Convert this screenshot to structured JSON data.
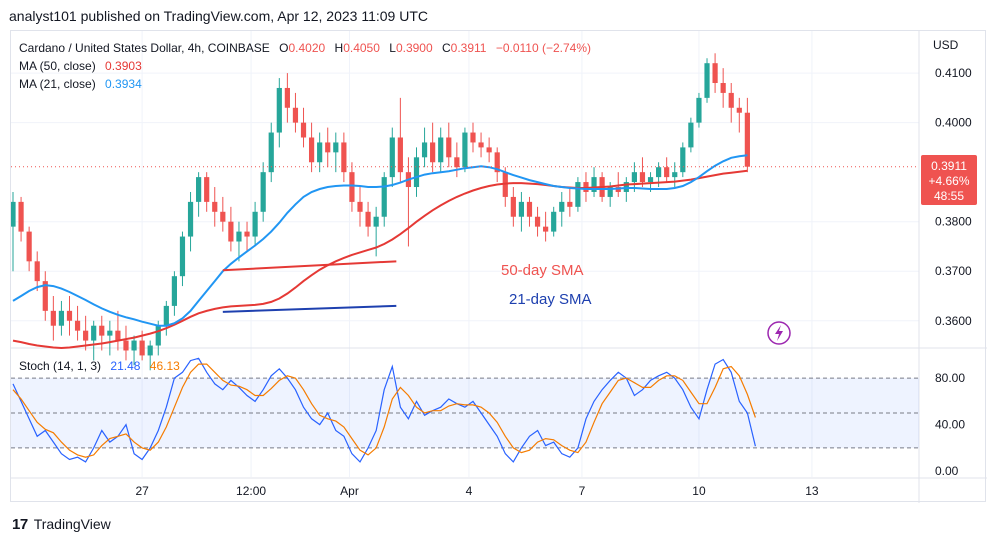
{
  "header": {
    "published_text": "analyst101 published on TradingView.com, Apr 12, 2023 11:09 UTC"
  },
  "legend": {
    "symbol": "Cardano / United States Dollar, 4h, COINBASE",
    "o_label": "O",
    "o_value": "0.4020",
    "h_label": "H",
    "h_value": "0.4050",
    "l_label": "L",
    "l_value": "0.3900",
    "c_label": "C",
    "c_value": "0.3911",
    "change": "−0.0110 (−2.74%)",
    "ma50_label": "MA (50, close)",
    "ma50_value": "0.3903",
    "ma21_label": "MA (21, close)",
    "ma21_value": "0.3934",
    "stoch_label": "Stoch (14, 1, 3)",
    "stoch_k": "21.48",
    "stoch_d": "46.13"
  },
  "price_axis": {
    "currency": "USD",
    "ticks": [
      "0.4100",
      "0.4000",
      "0.3800",
      "0.3700",
      "0.3600"
    ],
    "last_price": "0.3911",
    "last_change": "+4.66%",
    "countdown": "48:55"
  },
  "stoch_axis": {
    "ticks": [
      "80.00",
      "40.00",
      "0.00"
    ]
  },
  "time_axis": {
    "labels": [
      "27",
      "12:00",
      "Apr",
      "4",
      "7",
      "10",
      "13"
    ]
  },
  "annotations": {
    "sma50_text": "50-day SMA",
    "sma21_text": "21-day SMA"
  },
  "colors": {
    "up": "#26a69a",
    "down": "#ef5350",
    "ma50": "#e53935",
    "ma21": "#2196f3",
    "stoch_k": "#2962ff",
    "stoch_d": "#f57c00",
    "annotation_blue": "#1e40af",
    "lightning": "#9c27b0"
  },
  "footer": {
    "logo": "17",
    "brand": "TradingView"
  },
  "chart_data": {
    "type": "candlestick",
    "symbol": "Cardano / United States Dollar",
    "interval": "4h",
    "exchange": "COINBASE",
    "y_range": [
      0.3545,
      0.4185
    ],
    "candles": [
      {
        "o": 0.379,
        "h": 0.386,
        "l": 0.37,
        "c": 0.384
      },
      {
        "o": 0.384,
        "h": 0.385,
        "l": 0.376,
        "c": 0.378
      },
      {
        "o": 0.378,
        "h": 0.379,
        "l": 0.37,
        "c": 0.372
      },
      {
        "o": 0.372,
        "h": 0.374,
        "l": 0.366,
        "c": 0.368
      },
      {
        "o": 0.368,
        "h": 0.37,
        "l": 0.36,
        "c": 0.362
      },
      {
        "o": 0.362,
        "h": 0.365,
        "l": 0.356,
        "c": 0.359
      },
      {
        "o": 0.359,
        "h": 0.364,
        "l": 0.357,
        "c": 0.362
      },
      {
        "o": 0.362,
        "h": 0.365,
        "l": 0.357,
        "c": 0.36
      },
      {
        "o": 0.36,
        "h": 0.363,
        "l": 0.356,
        "c": 0.358
      },
      {
        "o": 0.358,
        "h": 0.361,
        "l": 0.354,
        "c": 0.356
      },
      {
        "o": 0.356,
        "h": 0.36,
        "l": 0.352,
        "c": 0.359
      },
      {
        "o": 0.359,
        "h": 0.361,
        "l": 0.354,
        "c": 0.357
      },
      {
        "o": 0.357,
        "h": 0.36,
        "l": 0.353,
        "c": 0.358
      },
      {
        "o": 0.358,
        "h": 0.362,
        "l": 0.354,
        "c": 0.356
      },
      {
        "o": 0.356,
        "h": 0.359,
        "l": 0.352,
        "c": 0.354
      },
      {
        "o": 0.354,
        "h": 0.357,
        "l": 0.351,
        "c": 0.356
      },
      {
        "o": 0.356,
        "h": 0.358,
        "l": 0.352,
        "c": 0.353
      },
      {
        "o": 0.353,
        "h": 0.356,
        "l": 0.35,
        "c": 0.355
      },
      {
        "o": 0.355,
        "h": 0.36,
        "l": 0.353,
        "c": 0.359
      },
      {
        "o": 0.359,
        "h": 0.364,
        "l": 0.357,
        "c": 0.363
      },
      {
        "o": 0.363,
        "h": 0.37,
        "l": 0.361,
        "c": 0.369
      },
      {
        "o": 0.369,
        "h": 0.378,
        "l": 0.367,
        "c": 0.377
      },
      {
        "o": 0.377,
        "h": 0.386,
        "l": 0.374,
        "c": 0.384
      },
      {
        "o": 0.384,
        "h": 0.39,
        "l": 0.381,
        "c": 0.389
      },
      {
        "o": 0.389,
        "h": 0.39,
        "l": 0.382,
        "c": 0.384
      },
      {
        "o": 0.384,
        "h": 0.387,
        "l": 0.379,
        "c": 0.382
      },
      {
        "o": 0.382,
        "h": 0.385,
        "l": 0.378,
        "c": 0.38
      },
      {
        "o": 0.38,
        "h": 0.383,
        "l": 0.374,
        "c": 0.376
      },
      {
        "o": 0.376,
        "h": 0.38,
        "l": 0.372,
        "c": 0.378
      },
      {
        "o": 0.378,
        "h": 0.38,
        "l": 0.374,
        "c": 0.377
      },
      {
        "o": 0.377,
        "h": 0.384,
        "l": 0.375,
        "c": 0.382
      },
      {
        "o": 0.382,
        "h": 0.392,
        "l": 0.38,
        "c": 0.39
      },
      {
        "o": 0.39,
        "h": 0.4,
        "l": 0.388,
        "c": 0.398
      },
      {
        "o": 0.398,
        "h": 0.409,
        "l": 0.395,
        "c": 0.407
      },
      {
        "o": 0.407,
        "h": 0.41,
        "l": 0.4,
        "c": 0.403
      },
      {
        "o": 0.403,
        "h": 0.406,
        "l": 0.398,
        "c": 0.4
      },
      {
        "o": 0.4,
        "h": 0.403,
        "l": 0.395,
        "c": 0.397
      },
      {
        "o": 0.397,
        "h": 0.4,
        "l": 0.39,
        "c": 0.392
      },
      {
        "o": 0.392,
        "h": 0.398,
        "l": 0.39,
        "c": 0.396
      },
      {
        "o": 0.396,
        "h": 0.399,
        "l": 0.391,
        "c": 0.394
      },
      {
        "o": 0.394,
        "h": 0.398,
        "l": 0.39,
        "c": 0.396
      },
      {
        "o": 0.396,
        "h": 0.398,
        "l": 0.388,
        "c": 0.39
      },
      {
        "o": 0.39,
        "h": 0.392,
        "l": 0.382,
        "c": 0.384
      },
      {
        "o": 0.384,
        "h": 0.387,
        "l": 0.379,
        "c": 0.382
      },
      {
        "o": 0.382,
        "h": 0.384,
        "l": 0.377,
        "c": 0.379
      },
      {
        "o": 0.379,
        "h": 0.383,
        "l": 0.373,
        "c": 0.381
      },
      {
        "o": 0.381,
        "h": 0.39,
        "l": 0.379,
        "c": 0.389
      },
      {
        "o": 0.389,
        "h": 0.399,
        "l": 0.387,
        "c": 0.397
      },
      {
        "o": 0.397,
        "h": 0.405,
        "l": 0.388,
        "c": 0.39
      },
      {
        "o": 0.39,
        "h": 0.393,
        "l": 0.375,
        "c": 0.387
      },
      {
        "o": 0.387,
        "h": 0.395,
        "l": 0.385,
        "c": 0.393
      },
      {
        "o": 0.393,
        "h": 0.399,
        "l": 0.391,
        "c": 0.396
      },
      {
        "o": 0.396,
        "h": 0.4,
        "l": 0.39,
        "c": 0.392
      },
      {
        "o": 0.392,
        "h": 0.399,
        "l": 0.39,
        "c": 0.397
      },
      {
        "o": 0.397,
        "h": 0.4,
        "l": 0.391,
        "c": 0.393
      },
      {
        "o": 0.393,
        "h": 0.396,
        "l": 0.389,
        "c": 0.391
      },
      {
        "o": 0.391,
        "h": 0.399,
        "l": 0.39,
        "c": 0.398
      },
      {
        "o": 0.398,
        "h": 0.4,
        "l": 0.394,
        "c": 0.396
      },
      {
        "o": 0.396,
        "h": 0.398,
        "l": 0.393,
        "c": 0.395
      },
      {
        "o": 0.395,
        "h": 0.397,
        "l": 0.392,
        "c": 0.394
      },
      {
        "o": 0.394,
        "h": 0.395,
        "l": 0.388,
        "c": 0.39
      },
      {
        "o": 0.39,
        "h": 0.391,
        "l": 0.383,
        "c": 0.385
      },
      {
        "o": 0.385,
        "h": 0.387,
        "l": 0.379,
        "c": 0.381
      },
      {
        "o": 0.381,
        "h": 0.386,
        "l": 0.378,
        "c": 0.384
      },
      {
        "o": 0.384,
        "h": 0.385,
        "l": 0.379,
        "c": 0.381
      },
      {
        "o": 0.381,
        "h": 0.383,
        "l": 0.377,
        "c": 0.379
      },
      {
        "o": 0.379,
        "h": 0.382,
        "l": 0.376,
        "c": 0.378
      },
      {
        "o": 0.378,
        "h": 0.383,
        "l": 0.377,
        "c": 0.382
      },
      {
        "o": 0.382,
        "h": 0.386,
        "l": 0.379,
        "c": 0.384
      },
      {
        "o": 0.384,
        "h": 0.387,
        "l": 0.381,
        "c": 0.383
      },
      {
        "o": 0.383,
        "h": 0.389,
        "l": 0.382,
        "c": 0.388
      },
      {
        "o": 0.388,
        "h": 0.39,
        "l": 0.384,
        "c": 0.386
      },
      {
        "o": 0.386,
        "h": 0.391,
        "l": 0.385,
        "c": 0.389
      },
      {
        "o": 0.389,
        "h": 0.39,
        "l": 0.384,
        "c": 0.385
      },
      {
        "o": 0.385,
        "h": 0.388,
        "l": 0.383,
        "c": 0.387
      },
      {
        "o": 0.387,
        "h": 0.39,
        "l": 0.385,
        "c": 0.386
      },
      {
        "o": 0.386,
        "h": 0.389,
        "l": 0.384,
        "c": 0.388
      },
      {
        "o": 0.388,
        "h": 0.392,
        "l": 0.386,
        "c": 0.39
      },
      {
        "o": 0.39,
        "h": 0.393,
        "l": 0.387,
        "c": 0.388
      },
      {
        "o": 0.388,
        "h": 0.39,
        "l": 0.386,
        "c": 0.389
      },
      {
        "o": 0.389,
        "h": 0.392,
        "l": 0.387,
        "c": 0.391
      },
      {
        "o": 0.391,
        "h": 0.393,
        "l": 0.388,
        "c": 0.389
      },
      {
        "o": 0.389,
        "h": 0.392,
        "l": 0.387,
        "c": 0.39
      },
      {
        "o": 0.39,
        "h": 0.396,
        "l": 0.389,
        "c": 0.395
      },
      {
        "o": 0.395,
        "h": 0.401,
        "l": 0.394,
        "c": 0.4
      },
      {
        "o": 0.4,
        "h": 0.406,
        "l": 0.399,
        "c": 0.405
      },
      {
        "o": 0.405,
        "h": 0.413,
        "l": 0.404,
        "c": 0.412
      },
      {
        "o": 0.412,
        "h": 0.414,
        "l": 0.406,
        "c": 0.408
      },
      {
        "o": 0.408,
        "h": 0.411,
        "l": 0.403,
        "c": 0.406
      },
      {
        "o": 0.406,
        "h": 0.408,
        "l": 0.4,
        "c": 0.403
      },
      {
        "o": 0.403,
        "h": 0.405,
        "l": 0.398,
        "c": 0.402
      },
      {
        "o": 0.402,
        "h": 0.405,
        "l": 0.39,
        "c": 0.3911
      }
    ],
    "ma50": [
      0.356,
      0.3557,
      0.3553,
      0.355,
      0.3548,
      0.3546,
      0.3545,
      0.3546,
      0.3548,
      0.355,
      0.3552,
      0.3554,
      0.3557,
      0.356,
      0.3563,
      0.3566,
      0.357,
      0.3574,
      0.3579,
      0.3585,
      0.3592,
      0.36,
      0.3608,
      0.3615,
      0.362,
      0.3624,
      0.3627,
      0.3629,
      0.363,
      0.3631,
      0.3632,
      0.3634,
      0.3638,
      0.3645,
      0.3655,
      0.3667,
      0.368,
      0.3692,
      0.3703,
      0.3712,
      0.372,
      0.3727,
      0.3733,
      0.3738,
      0.3743,
      0.3748,
      0.3755,
      0.3764,
      0.3775,
      0.3787,
      0.38,
      0.3812,
      0.3823,
      0.3833,
      0.3842,
      0.385,
      0.3857,
      0.3863,
      0.3868,
      0.3872,
      0.3875,
      0.3877,
      0.3878,
      0.3878,
      0.3877,
      0.3876,
      0.3874,
      0.3872,
      0.387,
      0.3869,
      0.3868,
      0.3868,
      0.3869,
      0.387,
      0.3871,
      0.3873,
      0.3875,
      0.3876,
      0.3877,
      0.3878,
      0.3879,
      0.388,
      0.3881,
      0.3883,
      0.3885,
      0.3888,
      0.3891,
      0.3894,
      0.3897,
      0.3899,
      0.3901,
      0.3903
    ],
    "ma21": [
      0.364,
      0.365,
      0.366,
      0.3668,
      0.3672,
      0.367,
      0.3665,
      0.3658,
      0.365,
      0.3642,
      0.3633,
      0.3625,
      0.3618,
      0.3612,
      0.3607,
      0.3603,
      0.3598,
      0.3594,
      0.359,
      0.359,
      0.3595,
      0.3605,
      0.362,
      0.364,
      0.366,
      0.368,
      0.37,
      0.3715,
      0.3728,
      0.374,
      0.3752,
      0.3765,
      0.378,
      0.3798,
      0.3818,
      0.3835,
      0.385,
      0.386,
      0.3866,
      0.387,
      0.3872,
      0.3873,
      0.3873,
      0.3872,
      0.387,
      0.387,
      0.3871,
      0.3874,
      0.3879,
      0.3885,
      0.389,
      0.3895,
      0.3898,
      0.39,
      0.3902,
      0.3905,
      0.3908,
      0.391,
      0.3912,
      0.391,
      0.3906,
      0.39,
      0.3894,
      0.3889,
      0.3884,
      0.388,
      0.3876,
      0.3872,
      0.387,
      0.3868,
      0.3867,
      0.3866,
      0.3866,
      0.3866,
      0.3866,
      0.3867,
      0.3868,
      0.3868,
      0.3867,
      0.3866,
      0.3866,
      0.3866,
      0.3868,
      0.3872,
      0.388,
      0.389,
      0.3902,
      0.3913,
      0.3922,
      0.3929,
      0.3932,
      0.3934
    ],
    "stoch": {
      "k": [
        75,
        60,
        45,
        30,
        35,
        25,
        15,
        10,
        12,
        8,
        20,
        35,
        25,
        30,
        40,
        15,
        10,
        20,
        35,
        55,
        80,
        85,
        95,
        97,
        85,
        75,
        70,
        78,
        72,
        65,
        60,
        70,
        82,
        88,
        80,
        70,
        55,
        45,
        40,
        50,
        35,
        30,
        15,
        8,
        20,
        35,
        70,
        90,
        55,
        45,
        60,
        48,
        52,
        55,
        62,
        58,
        55,
        60,
        50,
        40,
        30,
        15,
        8,
        20,
        30,
        35,
        22,
        25,
        15,
        12,
        20,
        45,
        60,
        70,
        78,
        85,
        80,
        65,
        70,
        78,
        82,
        85,
        80,
        70,
        55,
        45,
        70,
        92,
        96,
        85,
        60,
        50,
        21.48
      ],
      "d": [
        70,
        62,
        52,
        42,
        36,
        33,
        25,
        18,
        14,
        12,
        14,
        22,
        28,
        30,
        32,
        25,
        20,
        18,
        25,
        38,
        55,
        72,
        85,
        92,
        92,
        85,
        78,
        74,
        73,
        70,
        65,
        65,
        71,
        78,
        82,
        80,
        70,
        58,
        48,
        45,
        43,
        38,
        28,
        18,
        14,
        20,
        38,
        62,
        72,
        65,
        55,
        50,
        52,
        52,
        56,
        58,
        57,
        57,
        55,
        50,
        42,
        30,
        20,
        16,
        18,
        25,
        28,
        27,
        22,
        18,
        16,
        25,
        42,
        58,
        68,
        78,
        80,
        76,
        72,
        72,
        78,
        82,
        82,
        78,
        68,
        58,
        58,
        72,
        88,
        90,
        82,
        66,
        46.13
      ],
      "levels": [
        80,
        50,
        20
      ],
      "y_range": [
        -5,
        105
      ]
    },
    "trendlines": [
      {
        "name": "50-day SMA",
        "from": {
          "i": 26,
          "y": 0.3702
        },
        "to": {
          "i": 47.5,
          "y": 0.372
        }
      },
      {
        "name": "21-day SMA",
        "from": {
          "i": 26,
          "y": 0.3618
        },
        "to": {
          "i": 47.5,
          "y": 0.363
        }
      }
    ],
    "last_price_line": 0.3911
  }
}
